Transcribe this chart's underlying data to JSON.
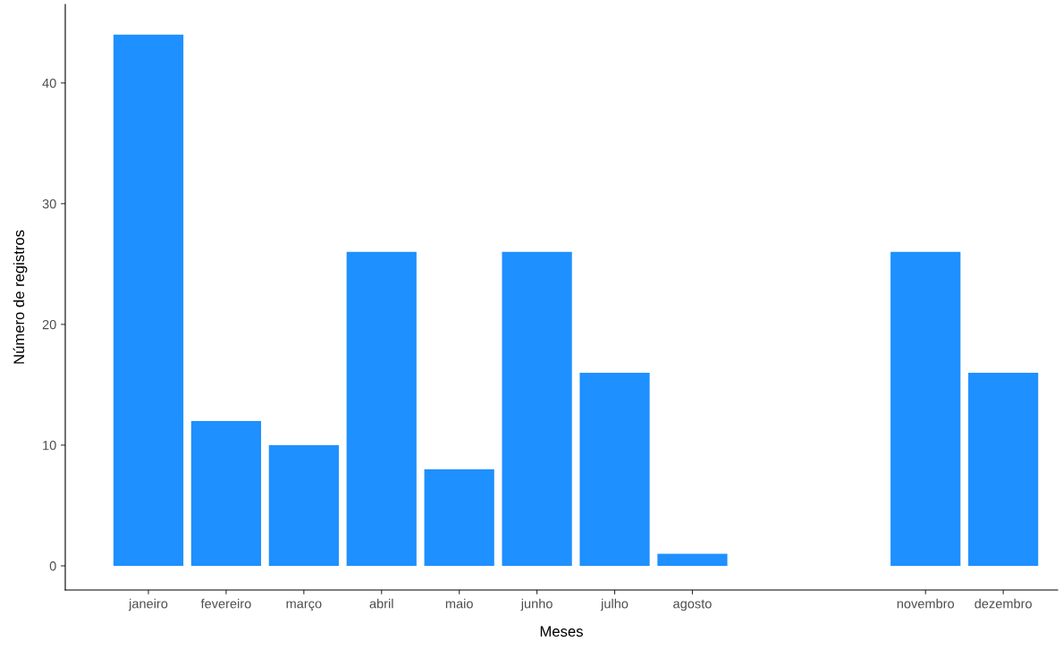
{
  "chart_data": {
    "type": "bar",
    "xlabel": "Meses",
    "ylabel": "Número de registros",
    "categories": [
      "janeiro",
      "fevereiro",
      "março",
      "abril",
      "maio",
      "junho",
      "julho",
      "agosto",
      null,
      null,
      "novembro",
      "dezembro"
    ],
    "values": [
      44,
      12,
      10,
      26,
      8,
      26,
      16,
      1,
      null,
      null,
      26,
      16
    ],
    "color": "#1e90ff",
    "ylim": [
      -2,
      46.5
    ],
    "yticks": [
      0,
      10,
      20,
      30,
      40
    ],
    "grid": false
  }
}
